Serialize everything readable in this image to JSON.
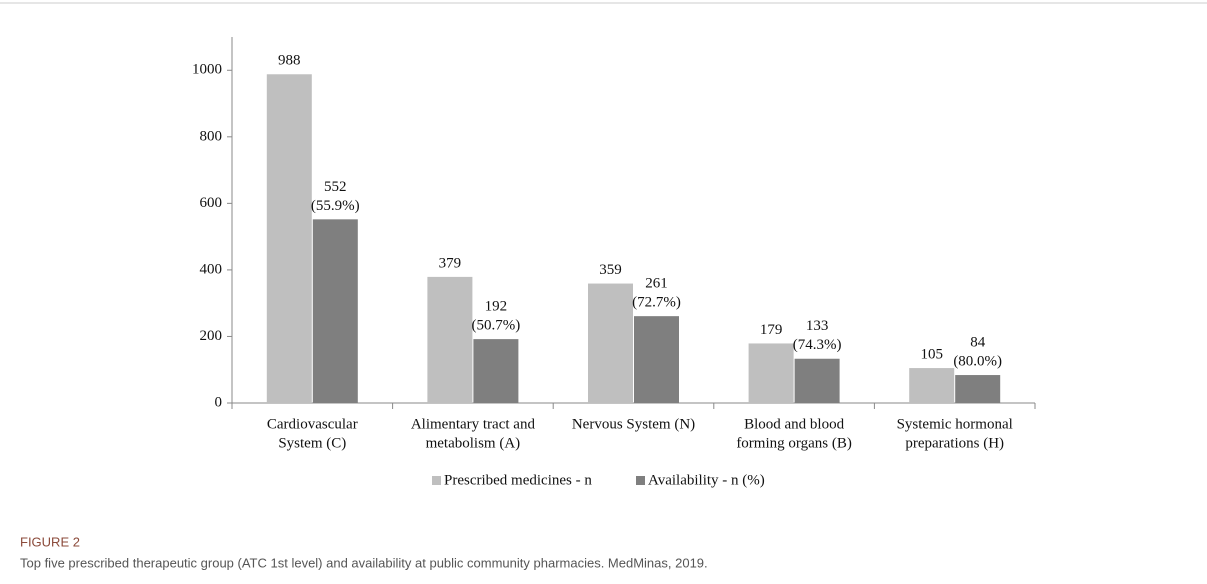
{
  "chart_data": {
    "type": "bar",
    "categories": [
      [
        "Cardiovascular",
        "System (C)"
      ],
      [
        "Alimentary tract and",
        "metabolism (A)"
      ],
      [
        "Nervous System (N)"
      ],
      [
        "Blood and blood",
        "forming organs (B)"
      ],
      [
        "Systemic hormonal",
        "preparations (H)"
      ]
    ],
    "series": [
      {
        "name": "Prescribed medicines - n",
        "color": "#bfbfbf",
        "values": [
          988,
          379,
          359,
          179,
          105
        ]
      },
      {
        "name": "Availability - n (%)",
        "color": "#7f7f7f",
        "values": [
          552,
          192,
          261,
          133,
          84
        ],
        "value_labels": [
          [
            "552",
            "(55.9%)"
          ],
          [
            "192",
            "(50.7%)"
          ],
          [
            "261",
            "(72.7%)"
          ],
          [
            "133",
            "(74.3%)"
          ],
          [
            "84",
            "(80.0%)"
          ]
        ]
      }
    ],
    "ylim": [
      0,
      1100
    ],
    "yticks": [
      0,
      200,
      400,
      600,
      800,
      1000
    ],
    "legend": "bottom"
  },
  "caption": {
    "label": "FIGURE 2",
    "text": "Top five prescribed therapeutic group (ATC 1st level) and availability at public community pharmacies. MedMinas, 2019."
  }
}
